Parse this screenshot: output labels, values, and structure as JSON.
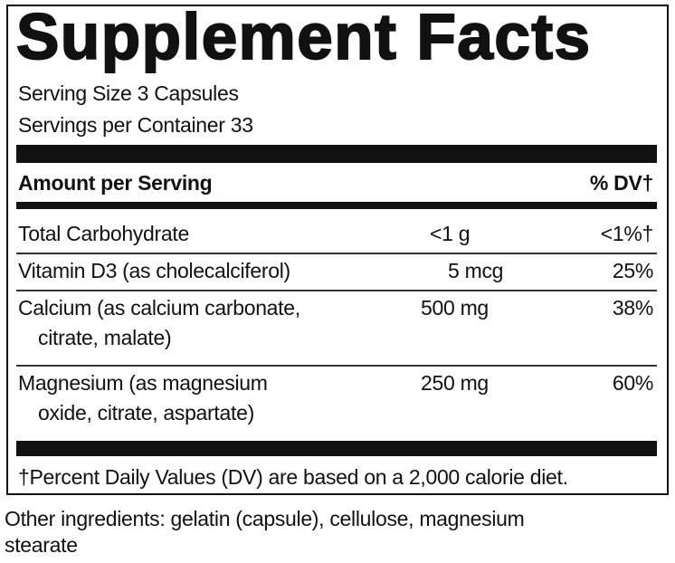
{
  "header": {
    "title": "Supplement Facts",
    "serving_size": "Serving Size 3 Capsules",
    "servings_per_container": "Servings per Container 33"
  },
  "table": {
    "header": [
      "Amount per Serving",
      "% DV†"
    ],
    "rows": [
      {
        "name": [
          "Total Carbohydrate"
        ],
        "amount": "<1 g",
        "dv": "<1%†"
      },
      {
        "name": [
          "Vitamin D3 (as cholecalciferol)"
        ],
        "amount": "5 mcg",
        "dv": "25%"
      },
      {
        "name": [
          "Calcium (as calcium carbonate,",
          "citrate, malate)"
        ],
        "amount": "500 mg",
        "dv": "38%"
      },
      {
        "name": [
          "Magnesium (as magnesium",
          "oxide, citrate, aspartate)"
        ],
        "amount": "250 mg",
        "dv": "60%"
      }
    ]
  },
  "footnote": "†Percent Daily Values (DV) are based on a 2,000 calorie diet.",
  "other_ingredients": [
    "Other ingredients: gelatin (capsule), cellulose, magnesium",
    "stearate"
  ]
}
